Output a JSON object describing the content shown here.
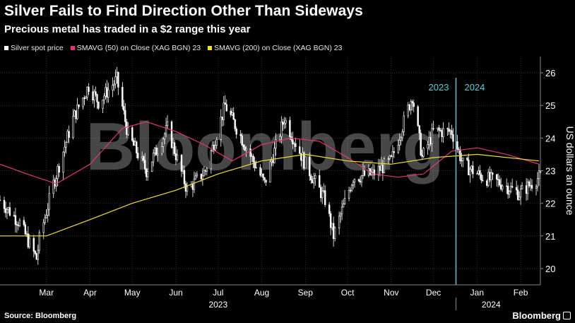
{
  "header": {
    "title": "Silver Fails to Find Direction Other Than Sideways",
    "subtitle": "Precious metal has traded in a $2 range this year"
  },
  "legend": [
    {
      "label": "Silver spot price",
      "color": "#ffffff"
    },
    {
      "label": "SMAVG (50)  on Close (XAG BGN) 23",
      "color": "#e0357a"
    },
    {
      "label": "SMAVG (200)  on Close (XAG BGN) 23",
      "color": "#f0e030"
    }
  ],
  "footer": {
    "source": "Source: Bloomberg",
    "brand": "Bloomberg"
  },
  "watermark": "Bloomberg",
  "colors": {
    "background": "#000000",
    "candle": "#ffffff",
    "sma50": "#e0357a",
    "sma200": "#f0e030",
    "divider": "#4fd1d9"
  },
  "chart_data": {
    "type": "line",
    "title": "Silver Fails to Find Direction Other Than Sideways",
    "subtitle": "Precious metal has traded in a $2 range this year",
    "ylabel": "US dollars an ounce",
    "xlabel": "",
    "ylim": [
      19.5,
      26.5
    ],
    "yticks": [
      20,
      21,
      22,
      23,
      24,
      25,
      26
    ],
    "xlim": [
      "2023-02-10",
      "2024-02-29"
    ],
    "month_ticks": [
      {
        "label": "Mar",
        "date": "2023-03-15"
      },
      {
        "label": "Apr",
        "date": "2023-04-15"
      },
      {
        "label": "May",
        "date": "2023-05-15"
      },
      {
        "label": "Jun",
        "date": "2023-06-15"
      },
      {
        "label": "Jul",
        "date": "2023-07-15"
      },
      {
        "label": "Aug",
        "date": "2023-08-15"
      },
      {
        "label": "Sep",
        "date": "2023-09-15"
      },
      {
        "label": "Oct",
        "date": "2023-10-15"
      },
      {
        "label": "Nov",
        "date": "2023-11-15"
      },
      {
        "label": "Dec",
        "date": "2023-12-15"
      },
      {
        "label": "Jan",
        "date": "2024-01-15"
      },
      {
        "label": "Feb",
        "date": "2024-02-15"
      }
    ],
    "year_labels": [
      {
        "label": "2023",
        "date": "2023-07-15"
      },
      {
        "label": "2024",
        "date": "2024-01-25"
      }
    ],
    "divider": {
      "date": "2023-12-31",
      "left_label": "2023",
      "right_label": "2024"
    },
    "grid": true,
    "legend_position": "top-left",
    "series": [
      {
        "name": "Silver spot price",
        "style": "candlestick",
        "x": [
          "2023-02-10",
          "2023-02-24",
          "2023-03-08",
          "2023-03-10",
          "2023-03-20",
          "2023-04-03",
          "2023-04-14",
          "2023-04-21",
          "2023-05-04",
          "2023-05-12",
          "2023-05-25",
          "2023-06-09",
          "2023-06-23",
          "2023-07-06",
          "2023-07-20",
          "2023-08-03",
          "2023-08-17",
          "2023-08-31",
          "2023-09-15",
          "2023-09-29",
          "2023-10-05",
          "2023-10-19",
          "2023-11-02",
          "2023-11-15",
          "2023-11-30",
          "2023-12-07",
          "2023-12-15",
          "2023-12-28",
          "2024-01-05",
          "2024-01-19",
          "2024-02-02",
          "2024-02-14",
          "2024-02-28"
        ],
        "values": [
          22.1,
          21.4,
          20.3,
          20.9,
          22.6,
          24.6,
          25.6,
          25.1,
          25.8,
          24.1,
          23.0,
          24.3,
          22.4,
          23.0,
          25.0,
          23.8,
          22.6,
          24.6,
          23.2,
          22.1,
          21.0,
          22.8,
          22.9,
          23.3,
          25.3,
          23.4,
          24.2,
          24.2,
          23.2,
          22.8,
          22.6,
          22.3,
          22.8
        ]
      },
      {
        "name": "SMAVG (50)  on Close (XAG BGN) 23",
        "x": [
          "2023-02-10",
          "2023-03-01",
          "2023-03-22",
          "2023-04-15",
          "2023-05-08",
          "2023-05-25",
          "2023-06-15",
          "2023-07-05",
          "2023-07-25",
          "2023-08-15",
          "2023-09-05",
          "2023-09-25",
          "2023-10-15",
          "2023-11-02",
          "2023-11-20",
          "2023-12-08",
          "2023-12-28",
          "2024-01-15",
          "2024-02-05",
          "2024-02-28"
        ],
        "values": [
          23.2,
          22.9,
          22.6,
          23.2,
          24.3,
          24.5,
          24.2,
          23.8,
          23.3,
          23.8,
          24.0,
          23.9,
          23.4,
          22.9,
          22.8,
          22.9,
          23.6,
          23.7,
          23.5,
          23.2
        ]
      },
      {
        "name": "SMAVG (200)  on Close (XAG BGN) 23",
        "x": [
          "2023-02-10",
          "2023-03-15",
          "2023-04-15",
          "2023-05-15",
          "2023-06-15",
          "2023-07-15",
          "2023-08-15",
          "2023-09-15",
          "2023-10-15",
          "2023-11-15",
          "2023-12-15",
          "2024-01-15",
          "2024-02-28"
        ],
        "values": [
          21.0,
          21.0,
          21.5,
          22.0,
          22.4,
          22.9,
          23.3,
          23.5,
          23.3,
          23.2,
          23.4,
          23.5,
          23.3
        ]
      }
    ]
  }
}
